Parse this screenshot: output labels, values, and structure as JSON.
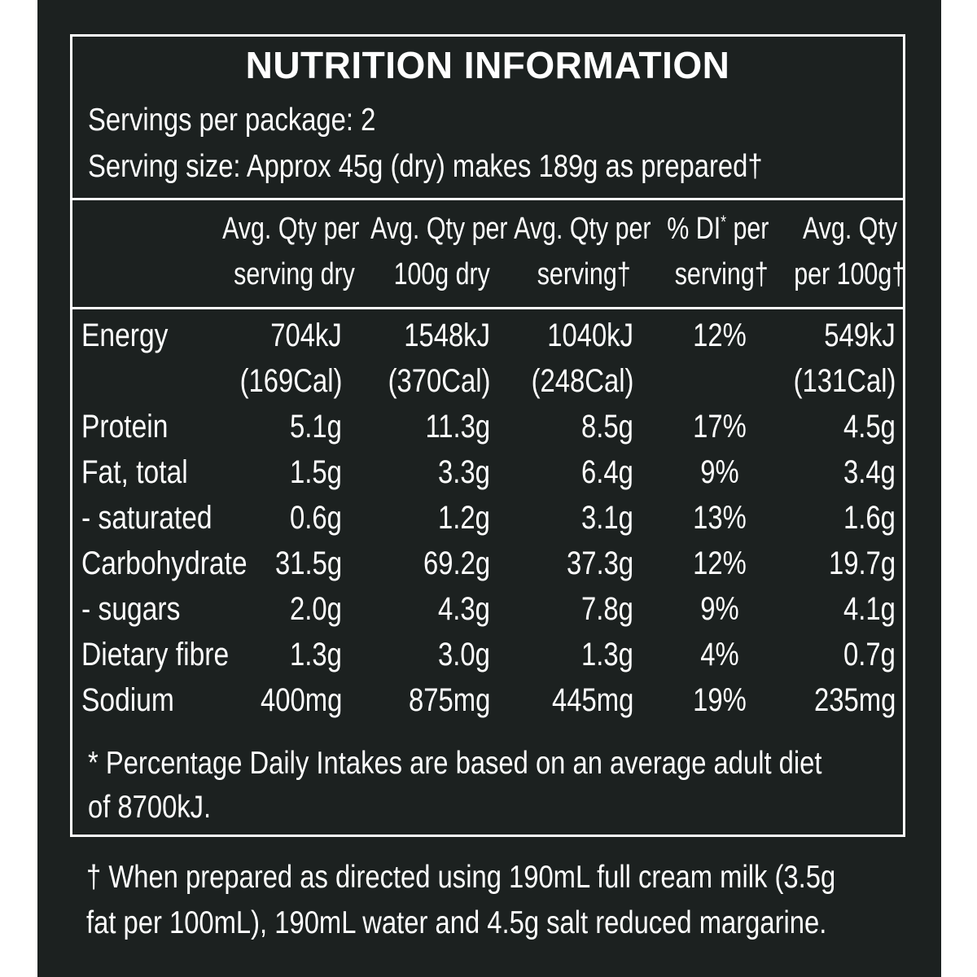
{
  "panel": {
    "title": "NUTRITION INFORMATION",
    "servings_per_package": "Servings per package: 2",
    "serving_size": "Serving size: Approx 45g (dry) makes 189g as prepared†"
  },
  "columns": [
    {
      "line1": "Avg. Qty per",
      "line2": "serving dry"
    },
    {
      "line1": "Avg. Qty per",
      "line2": "100g dry"
    },
    {
      "line1": "Avg. Qty per",
      "line2": "serving†"
    },
    {
      "line1": "% DI",
      "sup": "*",
      "line1_rest": " per",
      "line2": "serving†"
    },
    {
      "line1": "Avg. Qty",
      "line2": "per 100g†"
    }
  ],
  "rows": [
    {
      "label": "Energy",
      "values": [
        "704kJ",
        "1548kJ",
        "1040kJ",
        "12%",
        "549kJ"
      ],
      "subvalues": [
        "(169Cal)",
        "(370Cal)",
        "(248Cal)",
        "",
        "(131Cal)"
      ]
    },
    {
      "label": "Protein",
      "values": [
        "5.1g",
        "11.3g",
        "8.5g",
        "17%",
        "4.5g"
      ]
    },
    {
      "label": "Fat, total",
      "values": [
        "1.5g",
        "3.3g",
        "6.4g",
        "9%",
        "3.4g"
      ]
    },
    {
      "label": "- saturated",
      "values": [
        "0.6g",
        "1.2g",
        "3.1g",
        "13%",
        "1.6g"
      ]
    },
    {
      "label": "Carbohydrate",
      "values": [
        "31.5g",
        "69.2g",
        "37.3g",
        "12%",
        "19.7g"
      ]
    },
    {
      "label": "- sugars",
      "values": [
        "2.0g",
        "4.3g",
        "7.8g",
        "9%",
        "4.1g"
      ]
    },
    {
      "label": "Dietary fibre",
      "values": [
        "1.3g",
        "3.0g",
        "1.3g",
        "4%",
        "0.7g"
      ]
    },
    {
      "label": "Sodium",
      "values": [
        "400mg",
        "875mg",
        "445mg",
        "19%",
        "235mg"
      ]
    }
  ],
  "footnote_di": {
    "line1": "* Percentage Daily Intakes are based on an average adult diet",
    "line2": "of 8700kJ."
  },
  "footnote_prepared": {
    "line1": "† When prepared as directed using 190mL full cream milk (3.5g",
    "line2": "fat per 100mL), 190mL water and 4.5g salt reduced margarine."
  }
}
